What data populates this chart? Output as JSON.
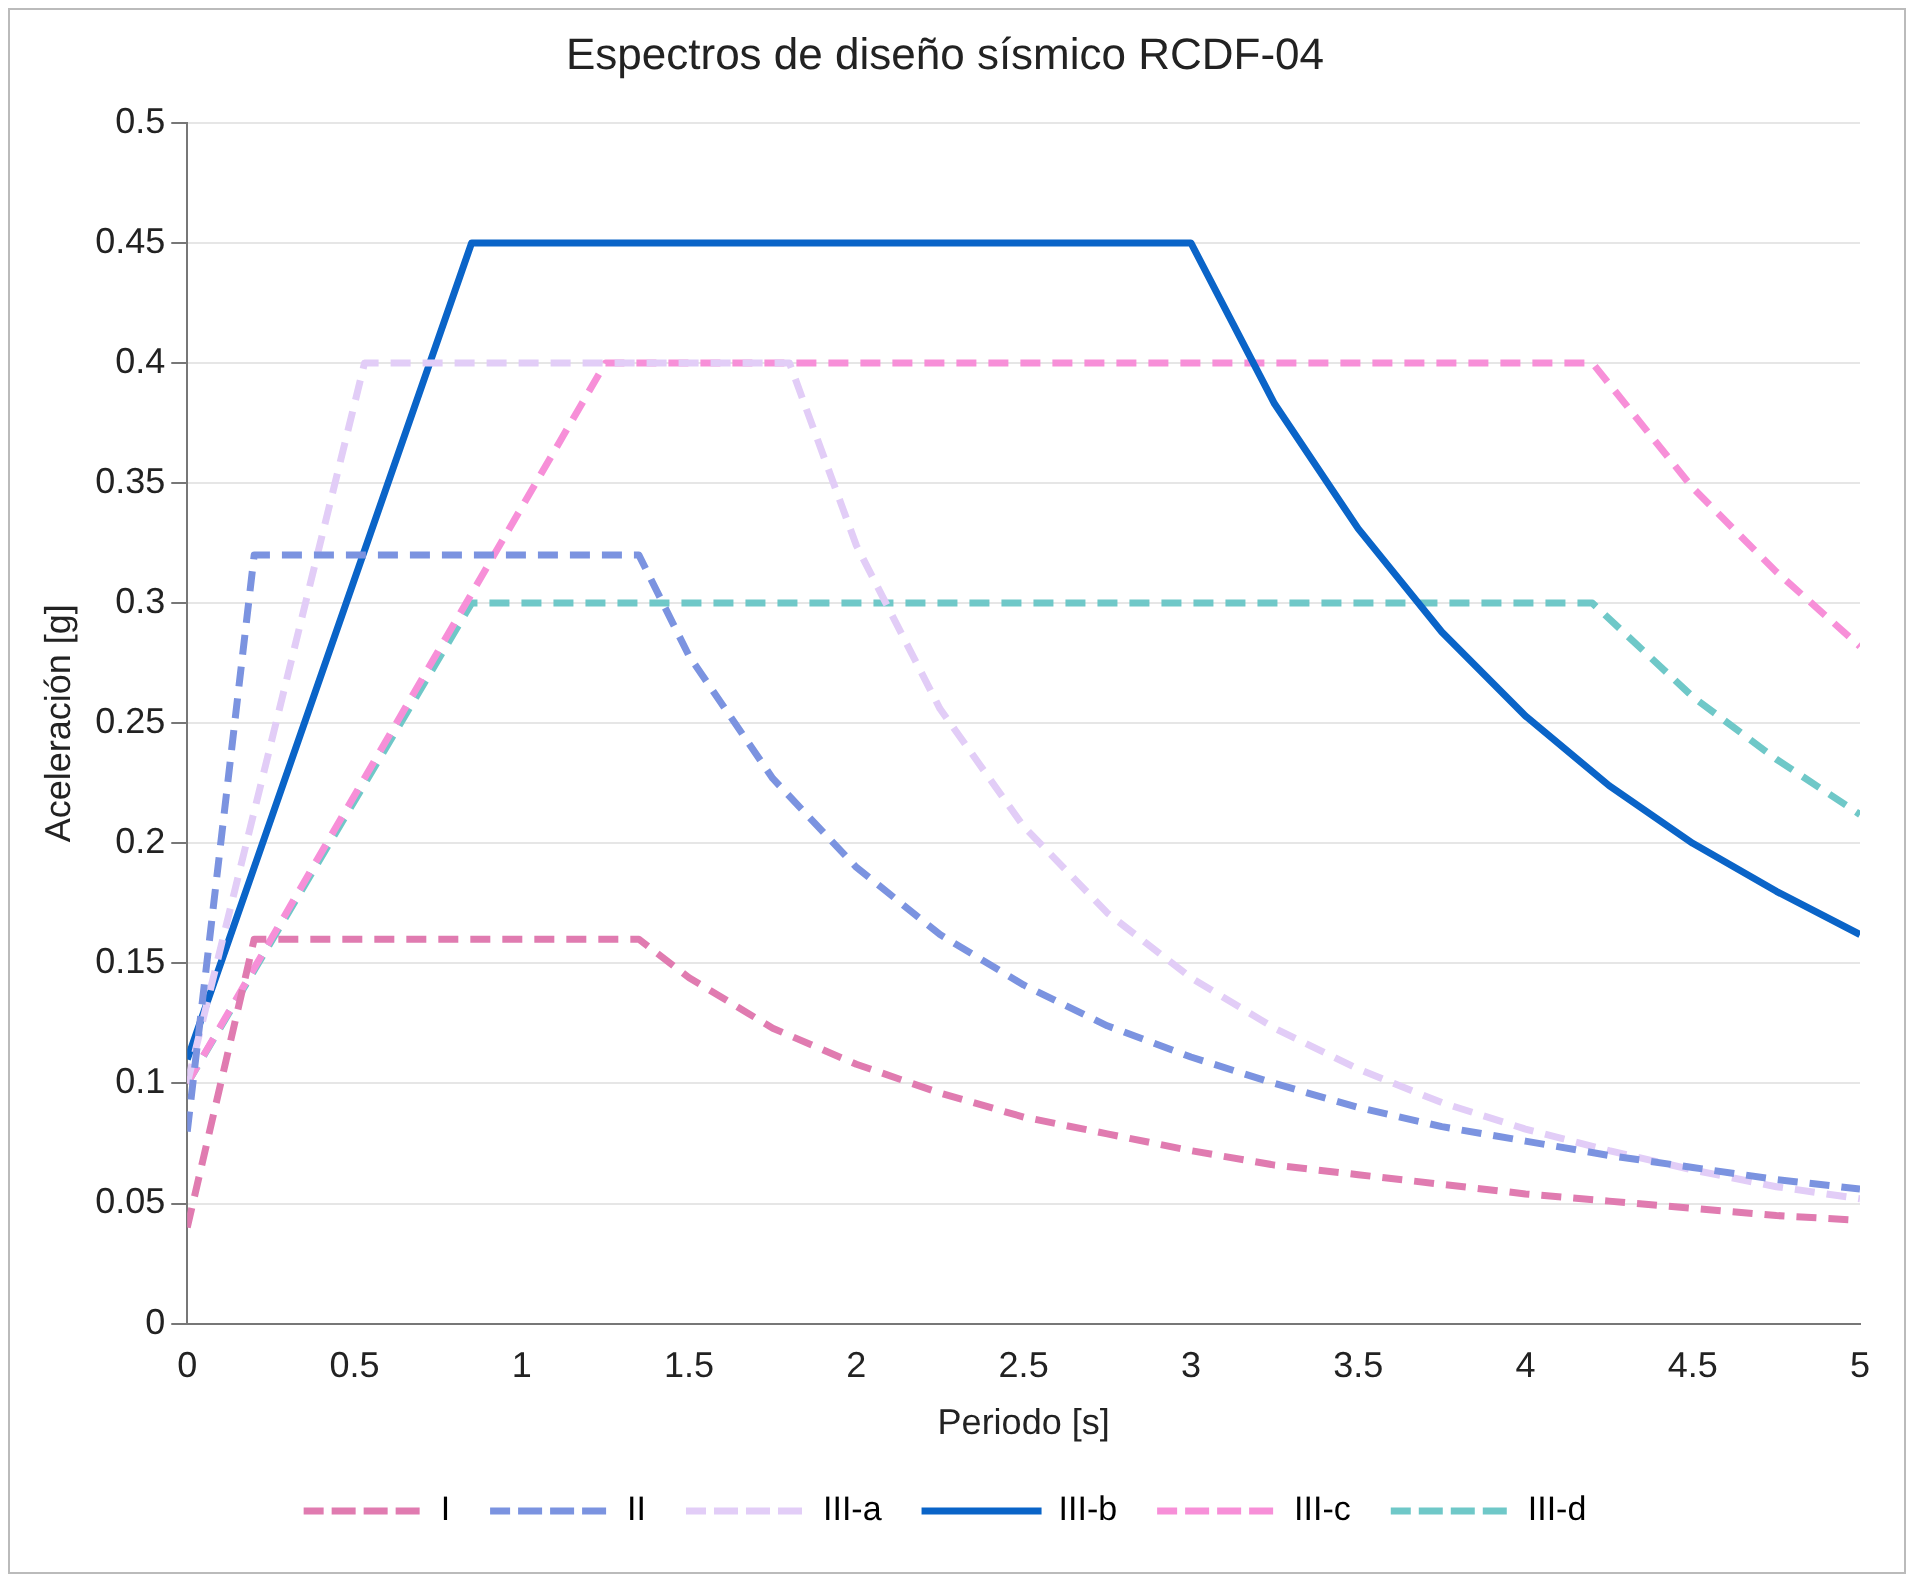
{
  "chart_data": {
    "type": "line",
    "title": "Espectros de diseño sísmico RCDF-04",
    "xlabel": "Periodo [s]",
    "ylabel": "Aceleración [g]",
    "xlim": [
      0,
      5
    ],
    "xticks": [
      0,
      0.5,
      1,
      1.5,
      2,
      2.5,
      3,
      3.5,
      4,
      4.5,
      5
    ],
    "ylim": [
      0,
      0.5
    ],
    "yticks": [
      0,
      0.05,
      0.1,
      0.15,
      0.2,
      0.25,
      0.3,
      0.35,
      0.4,
      0.45,
      0.5
    ],
    "grid": "y",
    "legend": "bottom",
    "marker": "none",
    "series": [
      {
        "name": "I",
        "color": "#e07bb0",
        "line_style": "dashed",
        "x": [
          0,
          0.2,
          1.35,
          1.5,
          1.75,
          2,
          2.25,
          2.5,
          2.75,
          3,
          3.25,
          3.5,
          3.75,
          4,
          4.25,
          4.5,
          4.75,
          5
        ],
        "values": [
          0.04,
          0.16,
          0.16,
          0.144,
          0.123,
          0.108,
          0.096,
          0.086,
          0.079,
          0.072,
          0.066,
          0.062,
          0.058,
          0.054,
          0.051,
          0.048,
          0.045,
          0.043
        ]
      },
      {
        "name": "II",
        "color": "#7b93e0",
        "line_style": "dashed",
        "x": [
          0,
          0.2,
          1.35,
          1.5,
          1.75,
          2,
          2.25,
          2.5,
          2.75,
          3,
          3.25,
          3.5,
          3.75,
          4,
          4.25,
          4.5,
          4.75,
          5
        ],
        "values": [
          0.08,
          0.32,
          0.32,
          0.278,
          0.227,
          0.19,
          0.162,
          0.141,
          0.124,
          0.111,
          0.1,
          0.09,
          0.082,
          0.076,
          0.07,
          0.065,
          0.06,
          0.056
        ]
      },
      {
        "name": "III-a",
        "color": "#e2cdf7",
        "line_style": "dashed",
        "x": [
          0,
          0.53,
          1.8,
          2,
          2.25,
          2.5,
          2.75,
          3,
          3.25,
          3.5,
          3.75,
          4,
          4.25,
          4.5,
          4.75,
          5
        ],
        "values": [
          0.1,
          0.4,
          0.4,
          0.324,
          0.256,
          0.207,
          0.171,
          0.144,
          0.123,
          0.106,
          0.092,
          0.081,
          0.072,
          0.064,
          0.057,
          0.052
        ]
      },
      {
        "name": "III-b",
        "color": "#0a64c8",
        "line_style": "solid",
        "x": [
          0,
          0.85,
          3,
          3.25,
          3.5,
          3.75,
          4,
          4.25,
          4.5,
          4.75,
          5
        ],
        "values": [
          0.11,
          0.45,
          0.45,
          0.383,
          0.331,
          0.288,
          0.253,
          0.224,
          0.2,
          0.18,
          0.162
        ]
      },
      {
        "name": "III-c",
        "color": "#f78fd8",
        "line_style": "dashed",
        "x": [
          0,
          1.25,
          4.2,
          4.5,
          4.75,
          5
        ],
        "values": [
          0.1,
          0.4,
          0.4,
          0.348,
          0.313,
          0.282
        ]
      },
      {
        "name": "III-d",
        "color": "#6fc8c8",
        "line_style": "dashed",
        "x": [
          0,
          0.85,
          4.2,
          4.5,
          4.75,
          5
        ],
        "values": [
          0.1,
          0.3,
          0.3,
          0.261,
          0.235,
          0.212
        ]
      }
    ]
  }
}
